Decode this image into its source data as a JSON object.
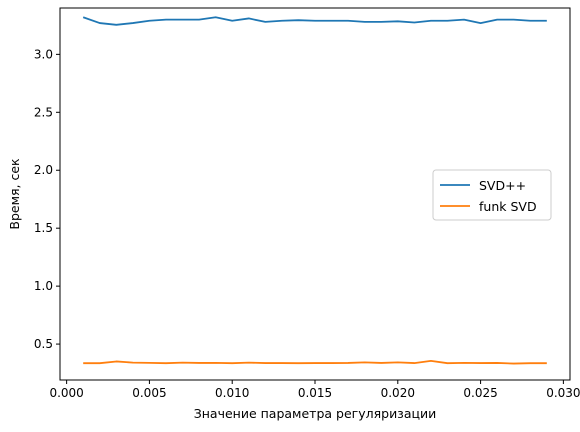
{
  "chart_data": {
    "type": "line",
    "title": "",
    "xlabel": "Значение параметра регуляризации",
    "ylabel": "Время, сек",
    "xlim": [
      -0.0004,
      0.0304
    ],
    "ylim": [
      0.19,
      3.4
    ],
    "xticks": [
      0.0,
      0.005,
      0.01,
      0.015,
      0.02,
      0.025,
      0.03
    ],
    "xtick_labels": [
      "0.000",
      "0.005",
      "0.010",
      "0.015",
      "0.020",
      "0.025",
      "0.030"
    ],
    "yticks": [
      0.5,
      1.0,
      1.5,
      2.0,
      2.5,
      3.0
    ],
    "ytick_labels": [
      "0.5",
      "1.0",
      "1.5",
      "2.0",
      "2.5",
      "3.0"
    ],
    "grid": false,
    "legend_position": "center-right",
    "x": [
      0.001,
      0.002,
      0.003,
      0.004,
      0.005,
      0.006,
      0.007,
      0.008,
      0.009,
      0.01,
      0.011,
      0.012,
      0.013,
      0.014,
      0.015,
      0.016,
      0.017,
      0.018,
      0.019,
      0.02,
      0.021,
      0.022,
      0.023,
      0.024,
      0.025,
      0.026,
      0.027,
      0.028,
      0.029
    ],
    "series": [
      {
        "name": "SVD++",
        "color": "#1f77b4",
        "values": [
          3.32,
          3.27,
          3.255,
          3.27,
          3.29,
          3.3,
          3.3,
          3.3,
          3.32,
          3.29,
          3.31,
          3.28,
          3.29,
          3.295,
          3.29,
          3.29,
          3.29,
          3.28,
          3.28,
          3.285,
          3.275,
          3.29,
          3.29,
          3.3,
          3.27,
          3.3,
          3.3,
          3.29,
          3.29
        ]
      },
      {
        "name": "funk SVD",
        "color": "#ff7f0e",
        "values": [
          0.335,
          0.335,
          0.35,
          0.34,
          0.338,
          0.335,
          0.34,
          0.337,
          0.338,
          0.335,
          0.34,
          0.336,
          0.336,
          0.335,
          0.336,
          0.336,
          0.337,
          0.342,
          0.337,
          0.342,
          0.336,
          0.355,
          0.335,
          0.338,
          0.336,
          0.337,
          0.332,
          0.335,
          0.335
        ]
      }
    ]
  }
}
